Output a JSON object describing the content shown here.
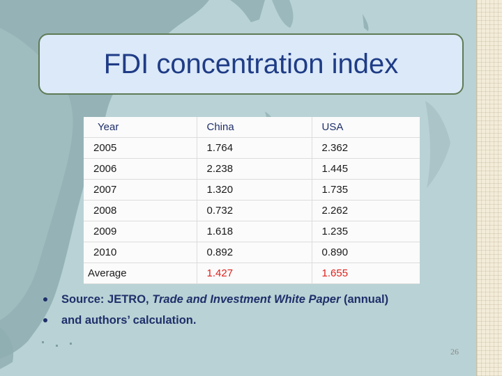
{
  "slide": {
    "title": "FDI concentration index",
    "page_number": "26"
  },
  "table": {
    "headers": [
      "Year",
      "China",
      "USA"
    ],
    "rows": [
      {
        "year": "2005",
        "china": "1.764",
        "usa": "2.362"
      },
      {
        "year": "2006",
        "china": "2.238",
        "usa": "1.445"
      },
      {
        "year": "2007",
        "china": "1.320",
        "usa": "1.735"
      },
      {
        "year": "2008",
        "china": "0.732",
        "usa": "2.262"
      },
      {
        "year": "2009",
        "china": "1.618",
        "usa": "1.235"
      },
      {
        "year": "2010",
        "china": "0.892",
        "usa": "0.890"
      }
    ],
    "average": {
      "label": "Average",
      "china": "1.427",
      "usa": "1.655",
      "highlight_color": "#e0201b"
    }
  },
  "bullets": {
    "source_prefix": "Source: JETRO, ",
    "source_title": "Trade and Investment White Paper",
    "source_suffix": " (annual)",
    "second": "and authors’ calculation."
  },
  "colors": {
    "title_text": "#1f3c86",
    "title_border": "#5e7a55",
    "title_fill": "#dbe9f8",
    "background": "#b7d0d3"
  }
}
